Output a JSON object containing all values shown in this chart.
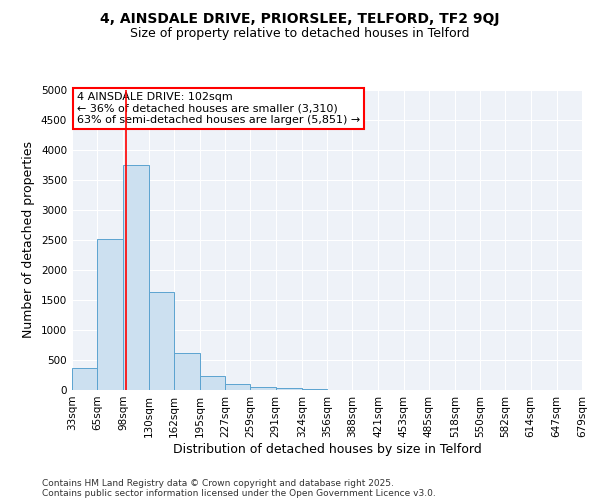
{
  "title1": "4, AINSDALE DRIVE, PRIORSLEE, TELFORD, TF2 9QJ",
  "title2": "Size of property relative to detached houses in Telford",
  "xlabel": "Distribution of detached houses by size in Telford",
  "ylabel": "Number of detached properties",
  "bar_color": "#cce0f0",
  "bar_edge_color": "#5ba3d0",
  "red_line_x": 102,
  "annotation_text": "4 AINSDALE DRIVE: 102sqm\n← 36% of detached houses are smaller (3,310)\n63% of semi-detached houses are larger (5,851) →",
  "footnote1": "Contains HM Land Registry data © Crown copyright and database right 2025.",
  "footnote2": "Contains public sector information licensed under the Open Government Licence v3.0.",
  "bin_edges": [
    33,
    65,
    98,
    130,
    162,
    195,
    227,
    259,
    291,
    324,
    356,
    388,
    421,
    453,
    485,
    518,
    550,
    582,
    614,
    647,
    679
  ],
  "bin_labels": [
    "33sqm",
    "65sqm",
    "98sqm",
    "130sqm",
    "162sqm",
    "195sqm",
    "227sqm",
    "259sqm",
    "291sqm",
    "324sqm",
    "356sqm",
    "388sqm",
    "421sqm",
    "453sqm",
    "485sqm",
    "518sqm",
    "550sqm",
    "582sqm",
    "614sqm",
    "647sqm",
    "679sqm"
  ],
  "values": [
    370,
    2520,
    3750,
    1630,
    620,
    240,
    100,
    50,
    30,
    20,
    5,
    3,
    2,
    1,
    1,
    0,
    0,
    0,
    0,
    0
  ],
  "ylim": [
    0,
    5000
  ],
  "yticks": [
    0,
    500,
    1000,
    1500,
    2000,
    2500,
    3000,
    3500,
    4000,
    4500,
    5000
  ],
  "background_color": "#eef2f8",
  "title_fontsize": 10,
  "subtitle_fontsize": 9,
  "axis_label_fontsize": 9,
  "tick_fontsize": 7.5,
  "annotation_fontsize": 8,
  "footnote_fontsize": 6.5
}
